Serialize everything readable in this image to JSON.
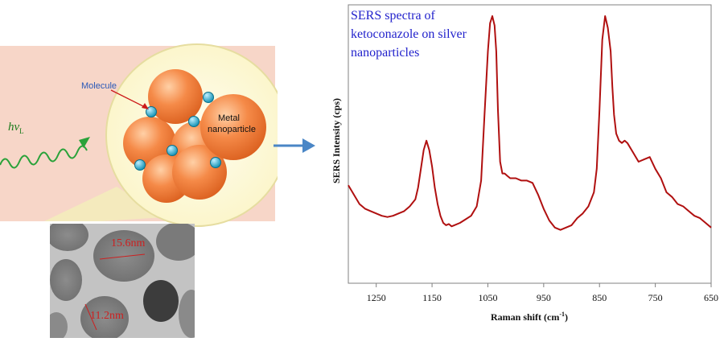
{
  "scheme": {
    "molecule_label": "Molecule",
    "particle_label_line1": "Metal",
    "particle_label_line2": "nanoparticle",
    "light_symbol": "hν",
    "light_subscript": "L"
  },
  "tem": {
    "measure1": "15.6nm",
    "measure2": "11.2nm"
  },
  "chart_data": {
    "type": "line",
    "title_lines": [
      "SERS spectra of",
      "ketoconazole on silver",
      "nanoparticles"
    ],
    "xlabel": "Raman shift (cm",
    "xlabel_sup": "-1",
    "xlabel_end": ")",
    "ylabel": "SERS Intensity (cps)",
    "x_reversed": true,
    "xlim": [
      1300,
      650
    ],
    "ylim": [
      0,
      100
    ],
    "xticks": [
      1250,
      1150,
      1050,
      950,
      850,
      750,
      650
    ],
    "y_tick_labels": false,
    "grid": false,
    "series": [
      {
        "color": "#b01010",
        "x": [
          1300,
          1290,
          1280,
          1270,
          1260,
          1250,
          1240,
          1230,
          1220,
          1210,
          1200,
          1190,
          1180,
          1175,
          1170,
          1165,
          1160,
          1155,
          1150,
          1145,
          1140,
          1135,
          1130,
          1125,
          1120,
          1115,
          1110,
          1100,
          1090,
          1080,
          1070,
          1062,
          1056,
          1050,
          1046,
          1042,
          1038,
          1035,
          1032,
          1028,
          1024,
          1020,
          1015,
          1010,
          1000,
          990,
          980,
          970,
          960,
          950,
          940,
          930,
          920,
          910,
          900,
          890,
          880,
          870,
          860,
          855,
          850,
          845,
          840,
          835,
          830,
          827,
          824,
          820,
          815,
          810,
          805,
          800,
          790,
          780,
          770,
          760,
          750,
          740,
          730,
          720,
          710,
          700,
          690,
          680,
          670,
          660,
          650
        ],
        "y": [
          28,
          24,
          20,
          18,
          17,
          16,
          15,
          14.5,
          15,
          16,
          17,
          19,
          22,
          27,
          35,
          43,
          47,
          43,
          36,
          27,
          20,
          15,
          12,
          11,
          11.5,
          10.5,
          11,
          12,
          13.5,
          15,
          19,
          30,
          58,
          85,
          97,
          100,
          96,
          85,
          60,
          38,
          33,
          33,
          32,
          31,
          31,
          30,
          30,
          29,
          24,
          18,
          13,
          10,
          9,
          10,
          11,
          14,
          16,
          19,
          25,
          35,
          60,
          90,
          100,
          95,
          85,
          70,
          58,
          50,
          47,
          46,
          47,
          46,
          42,
          38,
          39,
          40,
          35,
          31,
          25,
          23,
          20,
          19,
          17,
          15,
          14,
          12,
          10
        ]
      }
    ]
  }
}
